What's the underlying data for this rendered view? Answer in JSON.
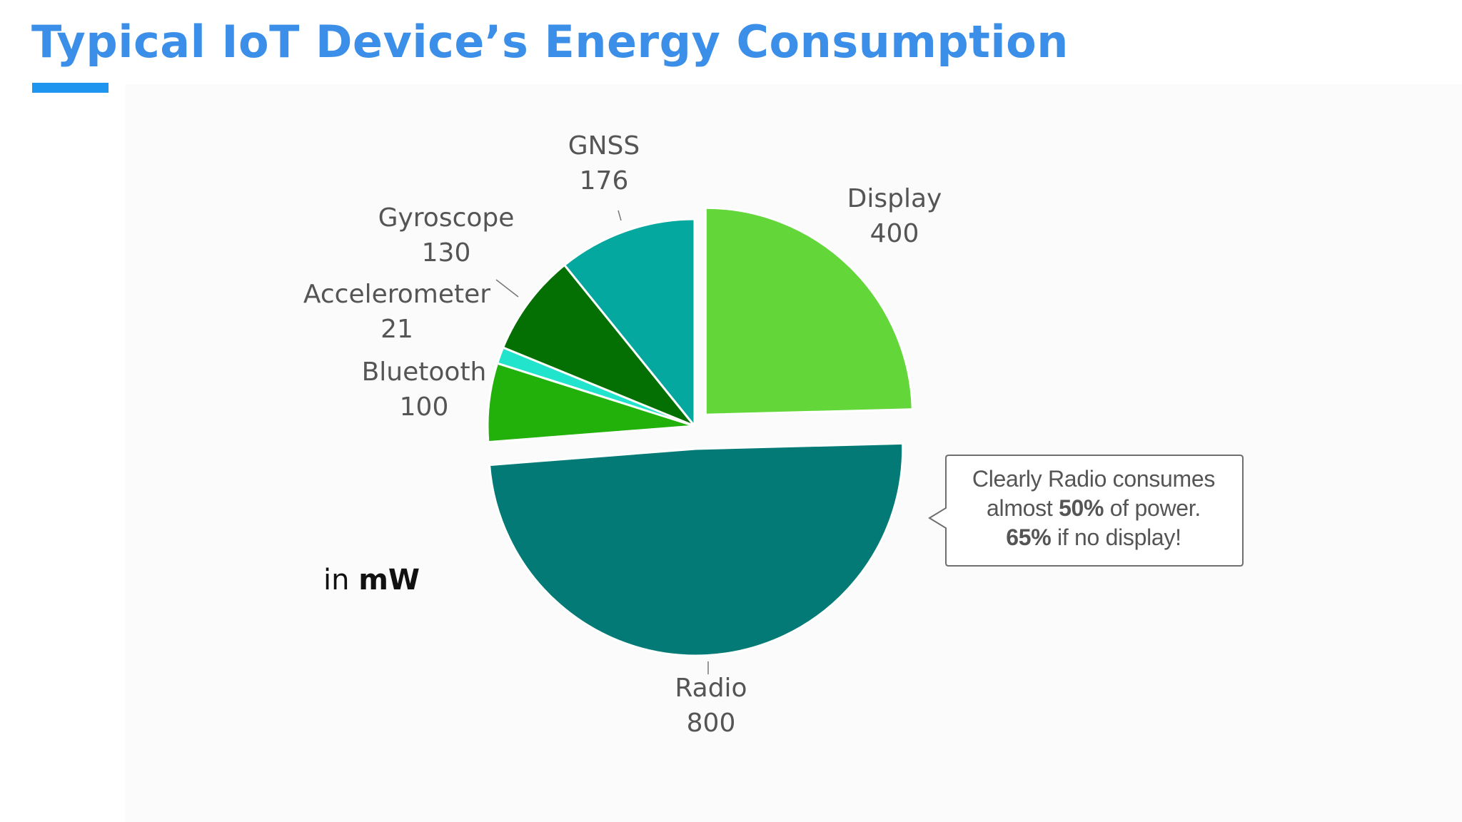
{
  "title": "Typical IoT Device’s Energy Consumption",
  "unit_note": {
    "prefix": "in",
    "unit": "mW"
  },
  "callout": {
    "line1": "Clearly Radio consumes",
    "line2_pre": "almost ",
    "line2_bold": "50%",
    "line2_post": " of power.",
    "line3_bold": "65%",
    "line3_post": " if no display!"
  },
  "chart_data": {
    "type": "pie",
    "title": "Typical IoT Device’s Energy Consumption",
    "unit": "mW",
    "start": "12 o'clock, clockwise",
    "exploded": [
      "Display",
      "Radio"
    ],
    "slices": [
      {
        "label": "Display",
        "value": 400,
        "color": "#63d63a"
      },
      {
        "label": "Radio",
        "value": 800,
        "color": "#037a75"
      },
      {
        "label": "Bluetooth",
        "value": 100,
        "color": "#22b00a"
      },
      {
        "label": "Accelerometer",
        "value": 21,
        "color": "#22e3cb"
      },
      {
        "label": "Gyroscope",
        "value": 130,
        "color": "#047004"
      },
      {
        "label": "GNSS",
        "value": 176,
        "color": "#04a89f"
      }
    ]
  }
}
